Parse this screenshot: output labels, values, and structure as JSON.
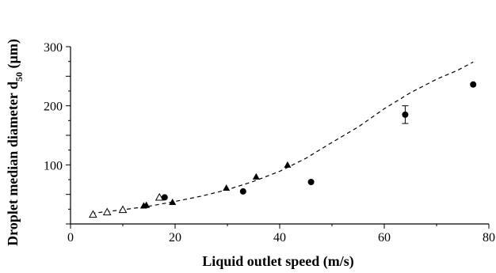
{
  "chart_data": {
    "type": "scatter",
    "xlabel": "Liquid outlet speed (m/s)",
    "ylabel": {
      "main": "Droplet median diameter d",
      "subscript": "50",
      "unit": " (µm)"
    },
    "xlim": [
      0,
      80
    ],
    "ylim": [
      0,
      300
    ],
    "xticks": [
      "0",
      "20",
      "40",
      "60",
      "80"
    ],
    "yticks": [
      "100",
      "200",
      "300"
    ],
    "grid": false,
    "legend": "none",
    "series": [
      {
        "marker": "open-triangle",
        "points": [
          [
            4.3,
            16
          ],
          [
            7,
            20
          ],
          [
            10,
            24
          ],
          [
            17,
            45
          ]
        ]
      },
      {
        "marker": "filled-triangle",
        "points": [
          [
            14,
            31
          ],
          [
            14.5,
            32
          ],
          [
            19.5,
            37
          ],
          [
            29.8,
            61
          ],
          [
            35.5,
            80
          ],
          [
            41.5,
            100
          ]
        ]
      },
      {
        "marker": "filled-circle",
        "points": [
          [
            18,
            45
          ],
          [
            33,
            55
          ],
          [
            46,
            71
          ],
          [
            64,
            185
          ],
          [
            77,
            236
          ]
        ],
        "error_bars": [
          {
            "x": 64,
            "low": 170,
            "high": 200
          }
        ]
      }
    ],
    "fit_curve": {
      "style": "dashed",
      "points": [
        [
          4,
          18
        ],
        [
          10,
          24
        ],
        [
          15,
          30
        ],
        [
          20,
          38
        ],
        [
          25,
          47
        ],
        [
          30,
          58
        ],
        [
          35,
          72
        ],
        [
          40,
          89
        ],
        [
          45,
          111
        ],
        [
          50,
          138
        ],
        [
          55,
          164
        ],
        [
          60,
          195
        ],
        [
          65,
          222
        ],
        [
          70,
          245
        ],
        [
          74,
          260
        ],
        [
          77,
          274
        ]
      ]
    }
  }
}
